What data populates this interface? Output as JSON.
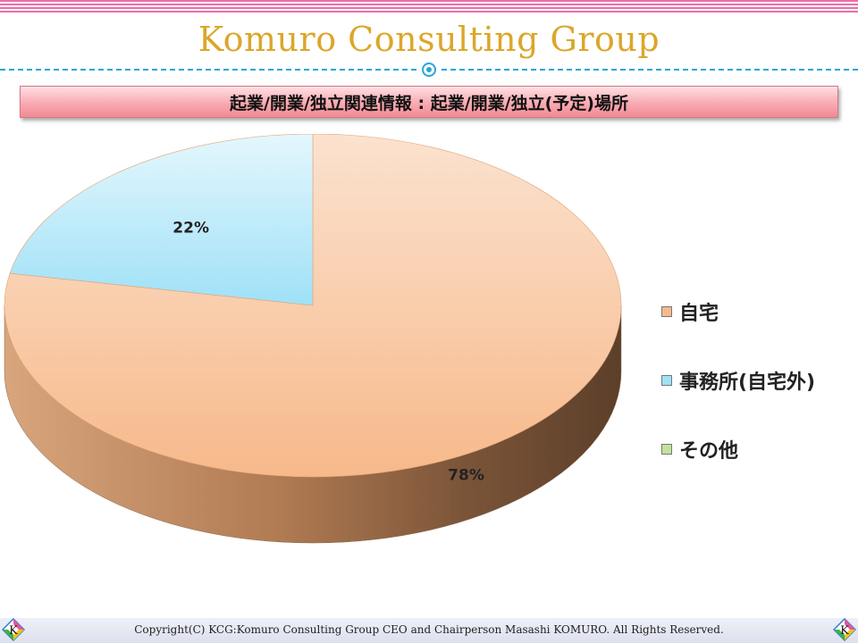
{
  "header": {
    "brand_title": "Komuro Consulting Group",
    "subtitle": "起業/開業/独立関連情報 : 起業/開業/独立(予定)場所"
  },
  "chart_data": {
    "type": "pie",
    "style": "3d",
    "title": "",
    "slices": [
      {
        "label": "自宅",
        "value": 78,
        "display": "78%",
        "color": "#f7b98a"
      },
      {
        "label": "事務所(自宅外)",
        "value": 22,
        "display": "22%",
        "color": "#9fe1f7"
      },
      {
        "label": "その他",
        "value": 0,
        "display": "",
        "color": "#c4e39a"
      }
    ],
    "legend_position": "right"
  },
  "footer": {
    "copyright": "Copyright(C) KCG:Komuro Consulting Group CEO and Chairperson Masashi KOMURO. All Rights Reserved.",
    "logo_letter": "K"
  },
  "colors": {
    "brand_gold": "#dba72a",
    "accent_blue": "#29a6d8",
    "stripe_pink": "#e8559a",
    "subtitle_pink": "#f9aab2"
  }
}
